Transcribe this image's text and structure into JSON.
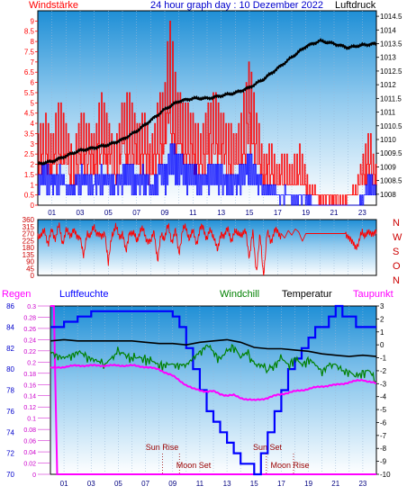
{
  "header": {
    "left_label": "Windstärke",
    "title": "24 hour graph day : 10 Dezember 2022",
    "right_label": "Luftdruck"
  },
  "hour_labels": [
    "01",
    "03",
    "05",
    "07",
    "09",
    "11",
    "13",
    "15",
    "17",
    "19",
    "21",
    "23"
  ],
  "legend": {
    "regen": "Regen",
    "luftfeuchte": "Luftfeuchte",
    "windchill": "Windchill",
    "temperatur": "Temperatur",
    "taupunkt": "Taupunkt"
  },
  "events": {
    "sun_rise": "Sun Rise",
    "sun_set": "Sun Set",
    "moon_set": "Moon Set",
    "moon_rise": "Moon Rise"
  },
  "colors": {
    "wind_gust": "#ff0000",
    "wind_avg": "#0000ff",
    "pressure": "#000000",
    "direction": "#ff0000",
    "rain": "#ff00ff",
    "humidity": "#0000ff",
    "windchill": "#008000",
    "temperature": "#000000",
    "dewpoint": "#ff00ff",
    "events": "#990000",
    "bg_top": "#1f8fd6",
    "bg_bottom": "#ffffff"
  },
  "chart_data": [
    {
      "type": "line",
      "title": "24 hour graph day : 10 Dezember 2022",
      "x_unit": "hour of day",
      "xlim": [
        0,
        24
      ],
      "left_axis": {
        "label": "Windstärke",
        "ylim": [
          0,
          9.5
        ],
        "ticks": [
          "0",
          "0.5",
          "1",
          "1.5",
          "2",
          "2.5",
          "3",
          "3.5",
          "4",
          "4.5",
          "5",
          "5.5",
          "6",
          "6.5",
          "7",
          "7.5",
          "8",
          "8.5",
          "9"
        ]
      },
      "right_axis": {
        "label": "Luftdruck",
        "ylim": [
          1007.6,
          1014.7
        ],
        "ticks": [
          "1008",
          "1008.5",
          "1009",
          "1009.5",
          "1010",
          "1010.5",
          "1011",
          "1011.5",
          "1012",
          "1012.5",
          "1013",
          "1013.5",
          "1014",
          "1014.5"
        ]
      },
      "series": [
        {
          "name": "Windstärke",
          "axis": "left",
          "x": [
            0,
            0.5,
            1,
            1.5,
            2,
            2.5,
            3,
            3.5,
            4,
            4.5,
            5,
            5.5,
            6,
            6.5,
            7,
            7.5,
            8,
            8.5,
            9,
            9.25,
            9.5,
            9.75,
            10,
            10.5,
            11,
            11.5,
            12,
            12.5,
            13,
            13.5,
            14,
            14.5,
            15,
            15.5,
            16,
            16.5,
            17,
            17.5,
            18,
            18.5,
            19,
            19.5,
            20,
            20.5,
            21,
            21.5,
            22,
            22.5,
            23,
            23.5,
            24
          ],
          "y": [
            3.5,
            4.5,
            3.5,
            5,
            4,
            2.5,
            4.5,
            4,
            3.5,
            5.5,
            4,
            3,
            5,
            5.5,
            4,
            4.5,
            3,
            5,
            6,
            9,
            8.5,
            6,
            5.5,
            5,
            4.5,
            3.5,
            5,
            5.5,
            4.5,
            4,
            3.5,
            5,
            7,
            4.5,
            2.5,
            3,
            2,
            2.5,
            2,
            3,
            1.5,
            1,
            0.5,
            0.5,
            0.5,
            0.5,
            0.5,
            1,
            2.5,
            3.5,
            2
          ]
        },
        {
          "name": "Windstärke (Mittel)",
          "axis": "left",
          "x": [
            0,
            0.5,
            1,
            1.5,
            2,
            2.5,
            3,
            3.5,
            4,
            4.5,
            5,
            5.5,
            6,
            6.5,
            7,
            7.5,
            8,
            8.5,
            9,
            9.5,
            10,
            10.5,
            11,
            11.5,
            12,
            12.5,
            13,
            13.5,
            14,
            14.5,
            15,
            15.5,
            16,
            16.5,
            17,
            17.5,
            18,
            18.5,
            19,
            19.5,
            20,
            20.5,
            21,
            21.5,
            22,
            22.5,
            23,
            23.5,
            24
          ],
          "y": [
            1.5,
            2,
            1.5,
            1.8,
            1.2,
            1,
            1.8,
            1.5,
            1.2,
            1.8,
            1.5,
            1.2,
            1.8,
            2,
            1.5,
            1.8,
            1,
            1.8,
            2,
            3,
            2.5,
            2,
            2,
            1.5,
            1.8,
            2,
            1.8,
            1.5,
            1.5,
            2,
            2.5,
            1.8,
            1,
            1.2,
            0.5,
            0.8,
            0.5,
            0.5,
            0.5,
            0.2,
            0,
            0,
            0,
            0,
            0,
            0,
            0.5,
            1.5,
            1
          ]
        },
        {
          "name": "Luftdruck",
          "axis": "right",
          "x": [
            0,
            1,
            2,
            3,
            4,
            5,
            6,
            7,
            8,
            9,
            10,
            11,
            12,
            13,
            14,
            15,
            16,
            17,
            18,
            19,
            20,
            21,
            22,
            23,
            24
          ],
          "y": [
            1009.1,
            1009.2,
            1009.4,
            1009.6,
            1009.7,
            1009.8,
            1010.0,
            1010.3,
            1010.7,
            1011.1,
            1011.4,
            1011.5,
            1011.5,
            1011.6,
            1011.7,
            1011.9,
            1012.2,
            1012.6,
            1013.0,
            1013.4,
            1013.6,
            1013.5,
            1013.35,
            1013.45,
            1013.5
          ]
        }
      ]
    },
    {
      "type": "line",
      "title": "",
      "xlim": [
        0,
        24
      ],
      "left_axis": {
        "ylim": [
          0,
          360
        ],
        "ticks": [
          "0",
          "45",
          "90",
          "135",
          "180",
          "225",
          "270",
          "315",
          "360"
        ]
      },
      "right_axis": {
        "ticks": [
          "N",
          "W",
          "S",
          "O",
          "N"
        ]
      },
      "series": [
        {
          "name": "Windrichtung",
          "x": [
            0,
            0.25,
            0.5,
            0.75,
            1,
            1.25,
            1.5,
            1.75,
            2,
            2.25,
            2.5,
            2.75,
            3,
            3.25,
            3.5,
            3.75,
            4,
            4.25,
            4.5,
            4.75,
            5,
            5.25,
            5.5,
            5.75,
            6,
            6.25,
            6.5,
            6.75,
            7,
            7.25,
            7.5,
            7.75,
            8,
            8.25,
            8.5,
            8.75,
            9,
            9.25,
            9.5,
            9.75,
            10,
            10.25,
            10.5,
            10.75,
            11,
            11.25,
            11.5,
            11.75,
            12,
            12.25,
            12.5,
            12.75,
            13,
            13.25,
            13.5,
            13.75,
            14,
            14.25,
            14.5,
            14.75,
            15,
            15.25,
            15.5,
            15.75,
            16,
            16.25,
            16.5,
            16.75,
            17,
            17.25,
            17.5,
            17.75,
            18,
            18.25,
            18.5,
            18.75,
            19,
            19.25,
            19.5,
            19.75,
            20,
            20.25,
            20.5,
            20.75,
            21,
            21.25,
            21.5,
            21.75,
            22,
            22.25,
            22.5,
            22.75,
            23,
            23.25,
            23.5,
            23.75,
            24
          ],
          "y": [
            270,
            240,
            300,
            200,
            290,
            250,
            310,
            220,
            280,
            260,
            300,
            240,
            270,
            100,
            290,
            250,
            310,
            280,
            230,
            300,
            60,
            270,
            320,
            240,
            290,
            130,
            300,
            260,
            230,
            290,
            280,
            240,
            200,
            300,
            80,
            270,
            250,
            310,
            230,
            280,
            150,
            290,
            300,
            250,
            270,
            220,
            290,
            310,
            240,
            280,
            260,
            140,
            290,
            250,
            300,
            230,
            270,
            290,
            240,
            300,
            110,
            280,
            30,
            250,
            5,
            270,
            220,
            290,
            270,
            270,
            240,
            290,
            260,
            300,
            280,
            220,
            270,
            270,
            270,
            270,
            270,
            270,
            270,
            270,
            270,
            270,
            270,
            270,
            270,
            200,
            200,
            200,
            280,
            270,
            260,
            290,
            270
          ]
        }
      ]
    },
    {
      "type": "line",
      "title": "",
      "xlim": [
        0,
        24
      ],
      "rain_axis": {
        "label": "Regen",
        "ylim": [
          0,
          0.3
        ],
        "ticks": [
          "0",
          "0.02",
          "0.04",
          "0.06",
          "0.08",
          "0.1",
          "0.12",
          "0.14",
          "0.16",
          "0.18",
          "0.2",
          "0.22",
          "0.24",
          "0.26",
          "0.28",
          "0.3"
        ]
      },
      "humidity_axis": {
        "label": "Luftfeuchte",
        "ylim": [
          70,
          86
        ],
        "ticks": [
          "70",
          "72",
          "74",
          "76",
          "78",
          "80",
          "82",
          "84",
          "86"
        ]
      },
      "temperature_axis": {
        "ylim": [
          -10,
          3
        ],
        "ticks": [
          "-10",
          "-9",
          "-8",
          "-7",
          "-6",
          "-5",
          "-4",
          "-3",
          "-2",
          "-1",
          "0",
          "1",
          "2",
          "3"
        ]
      },
      "series": [
        {
          "name": "Regen",
          "axis": "rain",
          "x": [
            0,
            0.25,
            0.5,
            24
          ],
          "y": [
            0.3,
            0.3,
            0,
            0
          ]
        },
        {
          "name": "Luftfeuchte",
          "axis": "humidity",
          "x": [
            0,
            1,
            2,
            3,
            4,
            5,
            6,
            7,
            8,
            9,
            9.5,
            10,
            10.5,
            11,
            11.5,
            12,
            12.5,
            13,
            13.5,
            14,
            14.5,
            15,
            15.5,
            16,
            16.5,
            17,
            17.5,
            18,
            18.5,
            19,
            19.5,
            20,
            20.5,
            21,
            21.5,
            22,
            22.5,
            23,
            23.5,
            24
          ],
          "y": [
            84,
            84.5,
            85,
            85.5,
            85.5,
            85.5,
            85.5,
            85.5,
            85.5,
            85,
            84,
            82,
            80,
            78,
            76,
            75,
            74,
            73,
            72,
            71,
            71,
            70,
            72,
            74,
            76,
            78,
            80,
            81,
            82,
            83,
            84,
            84,
            85,
            86,
            85,
            85,
            84,
            84,
            84,
            84
          ]
        },
        {
          "name": "Windchill",
          "axis": "temperature",
          "x": [
            0,
            1,
            2,
            3,
            4,
            5,
            6,
            7,
            8,
            9,
            10,
            10.5,
            11,
            11.5,
            12,
            12.5,
            13,
            13.5,
            14,
            14.5,
            15,
            15.5,
            16,
            16.5,
            17,
            17.5,
            18,
            18.5,
            19,
            19.5,
            20,
            20.5,
            21,
            21.5,
            22,
            22.5,
            23,
            23.5,
            24
          ],
          "y": [
            -0.5,
            -1,
            -0.5,
            -1,
            -1.5,
            -0.5,
            -1,
            -1,
            -1.5,
            -1.5,
            -1.5,
            -1,
            -0.5,
            0,
            -0.5,
            -1,
            -0.5,
            0,
            -1,
            -0.5,
            -1.5,
            -1.5,
            -2,
            -1.5,
            -1,
            -1.5,
            -1,
            -1.5,
            -1,
            -1.5,
            -2,
            -1.5,
            -1.5,
            -2,
            -2,
            -2.5,
            -2,
            -2,
            -3
          ]
        },
        {
          "name": "Temperatur",
          "axis": "temperature",
          "x": [
            0,
            1,
            2,
            3,
            4,
            5,
            6,
            7,
            8,
            9,
            10,
            11,
            12,
            13,
            14,
            15,
            16,
            17,
            18,
            19,
            20,
            21,
            22,
            23,
            24
          ],
          "y": [
            0.3,
            0.4,
            0.3,
            0.3,
            0.3,
            0.3,
            0.3,
            0.2,
            0.1,
            0.1,
            0,
            0.2,
            0.3,
            0.4,
            0.2,
            -0.2,
            -0.3,
            -0.3,
            -0.4,
            -0.5,
            -0.7,
            -0.8,
            -0.9,
            -0.8,
            -0.9
          ]
        },
        {
          "name": "Taupunkt",
          "axis": "temperature",
          "x": [
            0,
            1,
            2,
            3,
            4,
            5,
            6,
            7,
            8,
            9,
            10,
            10.5,
            11,
            11.5,
            12,
            12.5,
            13,
            13.5,
            14,
            14.5,
            15,
            15.5,
            16,
            17,
            18,
            19,
            20,
            21,
            22,
            23,
            24
          ],
          "y": [
            -1.8,
            -1.7,
            -1.6,
            -1.6,
            -1.6,
            -1.6,
            -1.6,
            -1.7,
            -1.9,
            -2.4,
            -3.1,
            -3.4,
            -3.5,
            -3.6,
            -3.6,
            -3.8,
            -3.9,
            -3.9,
            -4.1,
            -4.2,
            -4.3,
            -4.2,
            -4.1,
            -3.8,
            -3.6,
            -3.4,
            -3.2,
            -3.1,
            -2.9,
            -2.7,
            -3.0
          ]
        }
      ],
      "events": [
        {
          "name": "Sun Rise",
          "hour": 8.25
        },
        {
          "name": "Moon Set",
          "hour": 9.5
        },
        {
          "name": "Sun Set",
          "hour": 15.9
        },
        {
          "name": "Moon Rise",
          "hour": 17.9
        }
      ]
    }
  ]
}
